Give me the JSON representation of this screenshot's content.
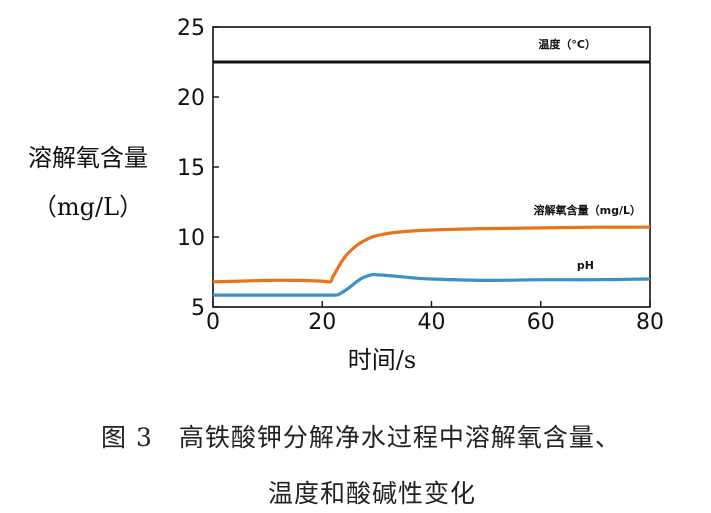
{
  "figure": {
    "caption_line1": "图 3　高铁酸钾分解净水过程中溶解氧含量、",
    "caption_line2": "温度和酸碱性变化"
  },
  "chart_data": {
    "type": "line",
    "ylabel_line1": "溶解氧含量",
    "ylabel_line2": "（mg/L）",
    "xlabel": "时间/s",
    "xlim": [
      0,
      80
    ],
    "ylim": [
      5,
      25
    ],
    "xticks": [
      0,
      20,
      40,
      60,
      80
    ],
    "yticks": [
      5,
      10,
      15,
      20,
      25
    ],
    "grid": false,
    "series": [
      {
        "name": "温度（°C）",
        "color": "#111111",
        "x": [
          0,
          10,
          20,
          30,
          40,
          50,
          60,
          70,
          80
        ],
        "y": [
          22.5,
          22.5,
          22.5,
          22.5,
          22.5,
          22.5,
          22.5,
          22.5,
          22.5
        ]
      },
      {
        "name": "溶解氧含量（mg/L）",
        "color": "#e8731c",
        "x": [
          0,
          5,
          10,
          15,
          20,
          21.5,
          22,
          24,
          26,
          28,
          30,
          34,
          40,
          50,
          60,
          70,
          80
        ],
        "y": [
          6.8,
          6.85,
          6.9,
          6.9,
          6.85,
          6.8,
          7.2,
          8.5,
          9.3,
          9.8,
          10.1,
          10.35,
          10.5,
          10.6,
          10.65,
          10.7,
          10.7
        ]
      },
      {
        "name": "pH",
        "color": "#3d8fc8",
        "x": [
          0,
          10,
          20,
          22,
          23,
          25,
          27,
          29,
          30,
          32,
          36,
          40,
          50,
          60,
          70,
          80
        ],
        "y": [
          5.85,
          5.85,
          5.85,
          5.85,
          5.9,
          6.4,
          7.0,
          7.3,
          7.3,
          7.25,
          7.1,
          7.0,
          6.9,
          6.95,
          6.95,
          7.0
        ]
      }
    ]
  }
}
